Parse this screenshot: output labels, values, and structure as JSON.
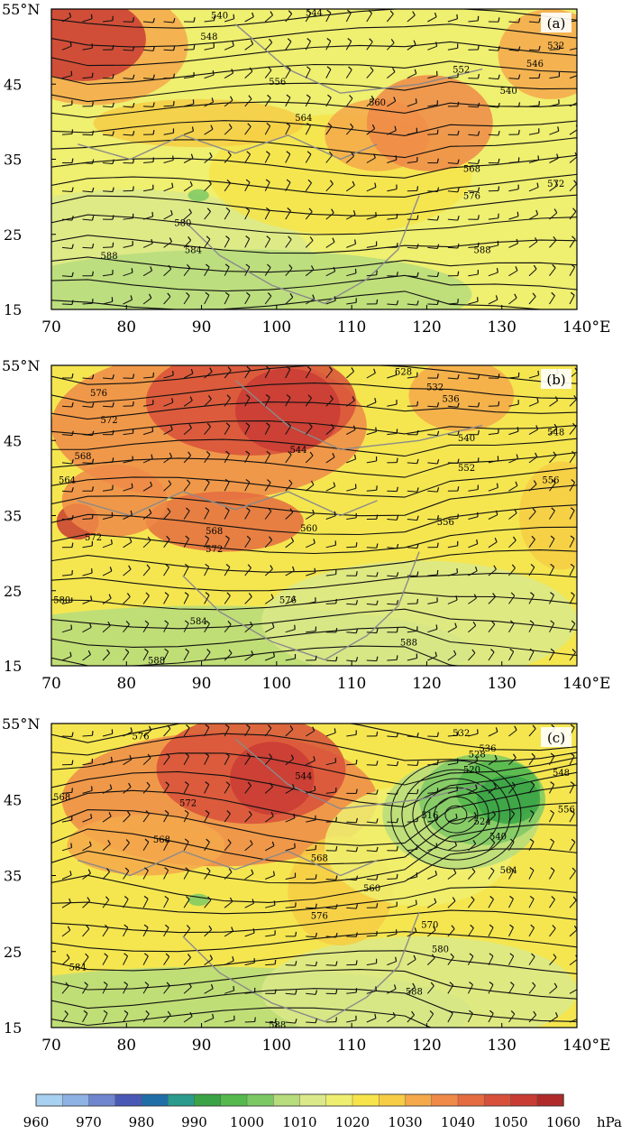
{
  "panels": [
    {
      "label": "(a)",
      "lat_ticks": [
        "55°N",
        "45",
        "35",
        "25",
        "15"
      ],
      "lon_ticks": [
        "70",
        "80",
        "90",
        "100",
        "110",
        "120",
        "130",
        "140°E"
      ],
      "contour_labels": [
        "540",
        "544",
        "548",
        "556",
        "564",
        "560",
        "552",
        "532",
        "546",
        "540",
        "568",
        "572",
        "576",
        "580",
        "584",
        "588",
        "588"
      ]
    },
    {
      "label": "(b)",
      "lat_ticks": [
        "55°N",
        "45",
        "35",
        "25",
        "15"
      ],
      "lon_ticks": [
        "70",
        "80",
        "90",
        "100",
        "110",
        "120",
        "130",
        "140°E"
      ],
      "contour_labels": [
        "576",
        "572",
        "568",
        "564",
        "544",
        "528",
        "532",
        "536",
        "540",
        "552",
        "556",
        "548",
        "556",
        "568",
        "560",
        "572",
        "572",
        "576",
        "580",
        "584",
        "588",
        "588"
      ]
    },
    {
      "label": "(c)",
      "lat_ticks": [
        "55°N",
        "45",
        "35",
        "25",
        "15"
      ],
      "lon_ticks": [
        "70",
        "80",
        "90",
        "100",
        "110",
        "120",
        "130",
        "140°E"
      ],
      "contour_labels": [
        "576",
        "568",
        "572",
        "568",
        "544",
        "532",
        "528",
        "536",
        "520",
        "516",
        "524",
        "540",
        "548",
        "556",
        "564",
        "560",
        "568",
        "576",
        "570",
        "580",
        "584",
        "588",
        "588"
      ]
    }
  ],
  "colorbar": {
    "tick_labels": [
      "960",
      "970",
      "980",
      "990",
      "1000",
      "1010",
      "1020",
      "1030",
      "1040",
      "1050",
      "1060"
    ],
    "unit": "hPa",
    "colors": [
      "#a8d0f0",
      "#8fb2e4",
      "#6f86cf",
      "#4a58b5",
      "#1f6ea8",
      "#2a9b8c",
      "#3aa345",
      "#55b94e",
      "#7cc964",
      "#b6dc7c",
      "#dbe98a",
      "#eeee70",
      "#f6e44a",
      "#f6cd44",
      "#f4a84a",
      "#ef8a48",
      "#e46c40",
      "#d8503a",
      "#c93c34",
      "#b02a2a"
    ]
  }
}
